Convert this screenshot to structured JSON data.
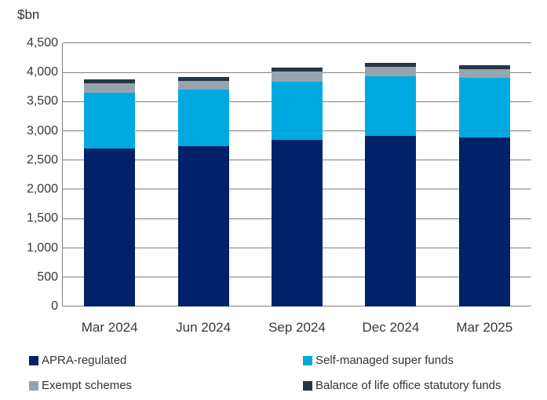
{
  "chart_data": {
    "type": "bar",
    "stacked": true,
    "unit_label": "$bn",
    "title": "",
    "xlabel": "",
    "ylabel": "$bn",
    "categories": [
      "Mar 2024",
      "Jun 2024",
      "Sep 2024",
      "Dec 2024",
      "Mar 2025"
    ],
    "series": [
      {
        "name": "APRA-regulated",
        "color": "#012169",
        "values": [
          2705,
          2735,
          2845,
          2910,
          2885
        ]
      },
      {
        "name": "Self-managed super funds",
        "color": "#00A9E0",
        "values": [
          955,
          970,
          995,
          1025,
          1030
        ]
      },
      {
        "name": "Exempt schemes",
        "color": "#98A4AD",
        "values": [
          150,
          150,
          170,
          160,
          145
        ]
      },
      {
        "name": "Balance of life office statutory funds",
        "color": "#243746",
        "values": [
          70,
          65,
          75,
          65,
          65
        ]
      }
    ],
    "totals": [
      3880,
      3920,
      4085,
      4160,
      4125
    ],
    "ylim": [
      0,
      4500
    ],
    "ytick_step": 500,
    "ytick_labels": [
      "0",
      "500",
      "1,000",
      "1,500",
      "2,000",
      "2,500",
      "3,000",
      "3,500",
      "4,000",
      "4,500"
    ],
    "grid": true,
    "legend_position": "bottom-two-columns",
    "legend_order": [
      "APRA-regulated",
      "Self-managed super funds",
      "Exempt schemes",
      "Balance of life office statutory funds"
    ],
    "colors": {
      "gridline": "#808080",
      "axis_text": "#383838",
      "legend_text": "#333333"
    }
  }
}
